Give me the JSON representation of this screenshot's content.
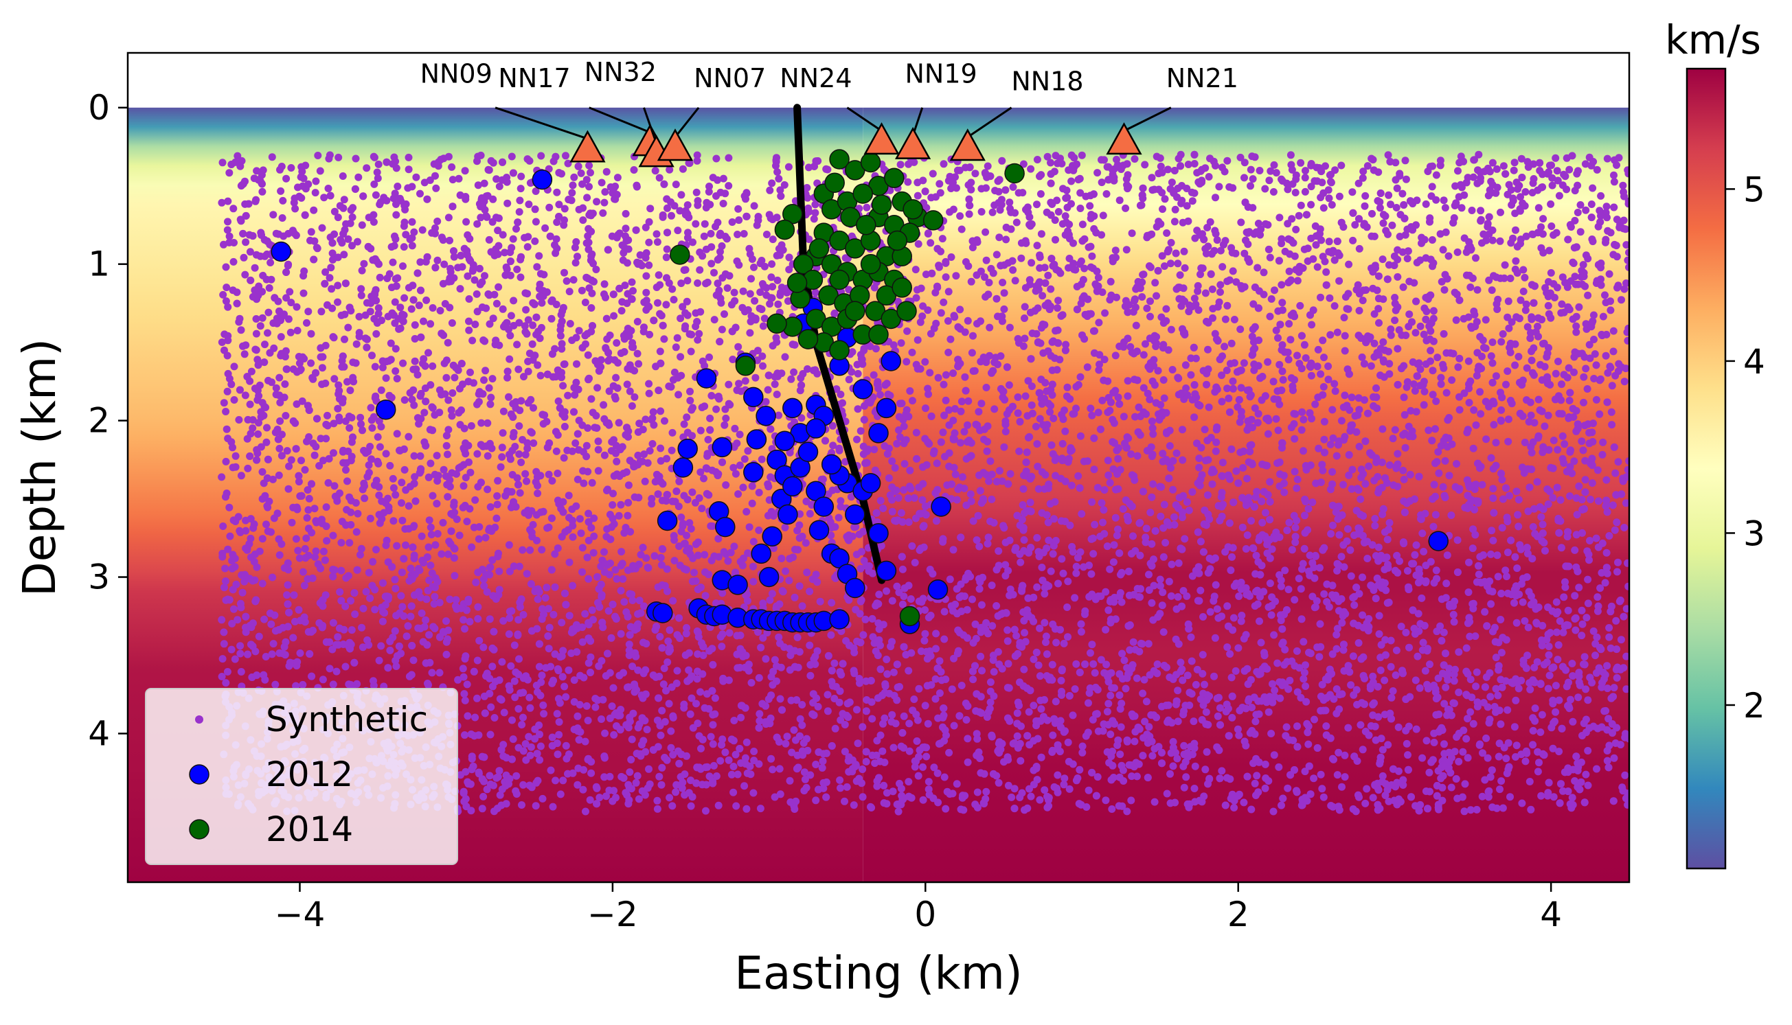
{
  "chart_data": {
    "type": "scatter",
    "title": "",
    "xlabel": "Easting (km)",
    "ylabel": "Depth (km)",
    "xlim": [
      -5.1,
      4.5
    ],
    "ylim": [
      4.95,
      -0.35
    ],
    "y_inverted": true,
    "x_ticks": [
      -4,
      -2,
      0,
      2,
      4
    ],
    "x_tick_labels": [
      "−4",
      "−2",
      "0",
      "2",
      "4"
    ],
    "y_ticks": [
      0,
      1,
      2,
      3,
      4
    ],
    "y_tick_labels": [
      "0",
      "1",
      "2",
      "3",
      "4"
    ],
    "grid": false,
    "legend_position": "lower-left",
    "background": {
      "type": "velocity-model",
      "colormap": "Spectral_r",
      "units": "km/s",
      "colorbar_range": [
        1.05,
        5.7
      ],
      "colorbar_ticks": [
        2,
        3,
        4,
        5
      ],
      "colorbar_tick_labels": [
        "2",
        "3",
        "4",
        "5"
      ]
    },
    "series": [
      {
        "name": "Synthetic",
        "color": "#9932CC",
        "marker": "small-dot",
        "description_regions": [
          {
            "x": [
              -4.5,
              4.5
            ],
            "depth": [
              0.3,
              4.5
            ]
          }
        ]
      },
      {
        "name": "2012",
        "color": "#0000FF",
        "marker": "circle",
        "points": [
          [
            -4.12,
            0.92
          ],
          [
            -3.45,
            1.93
          ],
          [
            -2.45,
            0.46
          ],
          [
            3.28,
            2.77
          ],
          [
            -1.72,
            3.22
          ],
          [
            -1.68,
            3.23
          ],
          [
            -1.45,
            3.2
          ],
          [
            -1.4,
            3.24
          ],
          [
            -1.35,
            3.25
          ],
          [
            -1.3,
            3.24
          ],
          [
            -1.2,
            3.26
          ],
          [
            -1.1,
            3.27
          ],
          [
            -1.05,
            3.27
          ],
          [
            -1.0,
            3.28
          ],
          [
            -0.95,
            3.28
          ],
          [
            -0.9,
            3.28
          ],
          [
            -0.85,
            3.29
          ],
          [
            -0.8,
            3.29
          ],
          [
            -0.75,
            3.29
          ],
          [
            -0.7,
            3.29
          ],
          [
            -0.65,
            3.28
          ],
          [
            -0.55,
            3.27
          ],
          [
            -1.65,
            2.64
          ],
          [
            -1.55,
            2.3
          ],
          [
            -1.52,
            2.18
          ],
          [
            -1.4,
            1.73
          ],
          [
            -1.3,
            2.17
          ],
          [
            -1.32,
            2.58
          ],
          [
            -1.28,
            2.68
          ],
          [
            -1.3,
            3.02
          ],
          [
            -1.2,
            3.05
          ],
          [
            -1.0,
            3.0
          ],
          [
            -1.05,
            2.85
          ],
          [
            -0.98,
            2.74
          ],
          [
            -1.1,
            2.33
          ],
          [
            -1.08,
            2.12
          ],
          [
            -1.1,
            1.85
          ],
          [
            -1.02,
            1.97
          ],
          [
            -0.95,
            2.25
          ],
          [
            -0.9,
            2.35
          ],
          [
            -0.92,
            2.5
          ],
          [
            -0.88,
            2.6
          ],
          [
            -0.85,
            2.42
          ],
          [
            -0.8,
            2.3
          ],
          [
            -0.75,
            2.2
          ],
          [
            -0.8,
            2.08
          ],
          [
            -0.85,
            1.92
          ],
          [
            -0.7,
            1.9
          ],
          [
            -0.7,
            2.45
          ],
          [
            -0.65,
            2.55
          ],
          [
            -0.68,
            2.7
          ],
          [
            -0.6,
            2.85
          ],
          [
            -0.55,
            2.88
          ],
          [
            -0.5,
            2.98
          ],
          [
            -0.45,
            2.6
          ],
          [
            -0.5,
            2.4
          ],
          [
            -0.55,
            2.35
          ],
          [
            -0.4,
            2.45
          ],
          [
            -0.35,
            2.4
          ],
          [
            -0.3,
            2.72
          ],
          [
            -0.25,
            2.96
          ],
          [
            -0.6,
            2.28
          ],
          [
            -0.65,
            1.97
          ],
          [
            -0.55,
            1.65
          ],
          [
            -0.4,
            1.8
          ],
          [
            -0.3,
            2.08
          ],
          [
            -0.22,
            1.62
          ],
          [
            -0.1,
            3.3
          ],
          [
            0.08,
            3.08
          ],
          [
            0.1,
            2.55
          ],
          [
            -0.25,
            1.92
          ],
          [
            -0.72,
            1.28
          ],
          [
            -0.78,
            1.38
          ],
          [
            -0.5,
            1.47
          ],
          [
            -1.15,
            1.63
          ],
          [
            -0.45,
            3.07
          ],
          [
            -0.7,
            2.05
          ],
          [
            -0.9,
            2.13
          ]
        ]
      },
      {
        "name": "2014",
        "color": "#006400",
        "marker": "circle",
        "points": [
          [
            0.57,
            0.42
          ],
          [
            -1.57,
            0.94
          ],
          [
            -1.15,
            1.65
          ],
          [
            -0.1,
            3.25
          ],
          [
            -0.85,
            0.68
          ],
          [
            -0.55,
            0.33
          ],
          [
            -0.45,
            0.4
          ],
          [
            -0.35,
            0.35
          ],
          [
            -0.3,
            0.5
          ],
          [
            -0.2,
            0.45
          ],
          [
            -0.15,
            0.6
          ],
          [
            -0.05,
            0.7
          ],
          [
            0.05,
            0.72
          ],
          [
            -0.65,
            0.55
          ],
          [
            -0.6,
            0.65
          ],
          [
            -0.5,
            0.6
          ],
          [
            -0.4,
            0.55
          ],
          [
            -0.3,
            0.7
          ],
          [
            -0.2,
            0.75
          ],
          [
            -0.1,
            0.8
          ],
          [
            -0.65,
            0.8
          ],
          [
            -0.55,
            0.85
          ],
          [
            -0.45,
            0.9
          ],
          [
            -0.35,
            0.85
          ],
          [
            -0.25,
            0.95
          ],
          [
            -0.15,
            0.95
          ],
          [
            -0.7,
            0.95
          ],
          [
            -0.6,
            1.0
          ],
          [
            -0.5,
            1.05
          ],
          [
            -0.4,
            1.1
          ],
          [
            -0.3,
            1.05
          ],
          [
            -0.2,
            1.1
          ],
          [
            -0.78,
            1.0
          ],
          [
            -0.72,
            1.1
          ],
          [
            -0.62,
            1.2
          ],
          [
            -0.52,
            1.25
          ],
          [
            -0.42,
            1.2
          ],
          [
            -0.32,
            1.3
          ],
          [
            -0.22,
            1.35
          ],
          [
            -0.12,
            1.3
          ],
          [
            -0.8,
            1.22
          ],
          [
            -0.7,
            1.35
          ],
          [
            -0.6,
            1.4
          ],
          [
            -0.5,
            1.35
          ],
          [
            -0.4,
            1.45
          ],
          [
            -0.3,
            1.45
          ],
          [
            -0.65,
            1.5
          ],
          [
            -0.55,
            1.55
          ],
          [
            -0.75,
            1.48
          ],
          [
            -0.85,
            1.4
          ],
          [
            -0.95,
            1.38
          ],
          [
            -0.48,
            0.7
          ],
          [
            -0.38,
            0.75
          ],
          [
            -0.28,
            0.62
          ],
          [
            -0.18,
            0.85
          ],
          [
            -0.08,
            0.65
          ],
          [
            -0.58,
            0.48
          ],
          [
            -0.68,
            0.9
          ],
          [
            -0.82,
            1.12
          ],
          [
            -0.9,
            0.78
          ],
          [
            -0.35,
            1.0
          ],
          [
            -0.25,
            1.2
          ],
          [
            -0.45,
            1.3
          ],
          [
            -0.55,
            1.1
          ],
          [
            -0.15,
            1.15
          ]
        ]
      }
    ],
    "stations": [
      {
        "name": "NN09",
        "x": -2.16,
        "depth": 0.26
      },
      {
        "name": "NN17",
        "x": -1.76,
        "depth": 0.22
      },
      {
        "name": "NN32",
        "x": -1.72,
        "depth": 0.29
      },
      {
        "name": "NN07",
        "x": -1.6,
        "depth": 0.25
      },
      {
        "name": "NN24",
        "x": -0.28,
        "depth": 0.21
      },
      {
        "name": "NN19",
        "x": -0.08,
        "depth": 0.24
      },
      {
        "name": "NN18",
        "x": 0.27,
        "depth": 0.25
      },
      {
        "name": "NN21",
        "x": 1.27,
        "depth": 0.21
      }
    ],
    "fault_trace": [
      [
        -0.82,
        0.0
      ],
      [
        -0.8,
        0.5
      ],
      [
        -0.78,
        1.0
      ],
      [
        -0.7,
        1.5
      ],
      [
        -0.55,
        2.0
      ],
      [
        -0.4,
        2.5
      ],
      [
        -0.28,
        3.02
      ]
    ]
  }
}
